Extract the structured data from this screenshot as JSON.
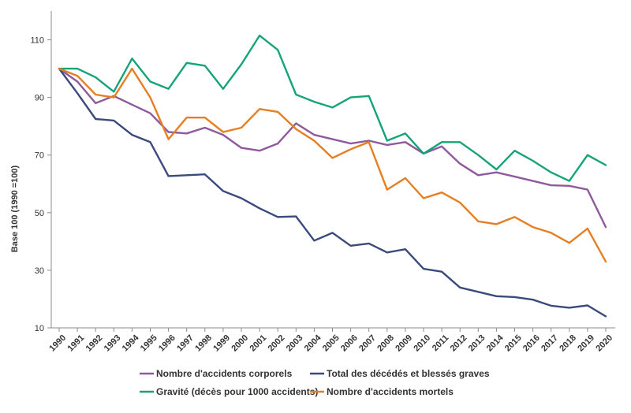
{
  "chart_data": {
    "type": "line",
    "ylabel": "Base 100 (1990 =100)",
    "ylim": [
      10,
      120
    ],
    "yticks": [
      10,
      30,
      50,
      70,
      90,
      110
    ],
    "grid": false,
    "legend_position": "bottom",
    "x": [
      1990,
      1991,
      1992,
      1993,
      1994,
      1995,
      1996,
      1997,
      1998,
      1999,
      2000,
      2001,
      2002,
      2003,
      2004,
      2005,
      2006,
      2007,
      2008,
      2009,
      2010,
      2011,
      2012,
      2013,
      2014,
      2015,
      2016,
      2017,
      2018,
      2019,
      2020
    ],
    "x_labels": [
      "1990",
      "1991",
      "1992",
      "1993",
      "1994",
      "1995",
      "1996",
      "1997",
      "1998",
      "1999",
      "2000",
      "2001",
      "2002",
      "2003",
      "2004",
      "2005",
      "2006",
      "2007",
      "2008",
      "2009",
      "2010",
      "2011",
      "2012",
      "2013",
      "2014",
      "2015",
      "2016",
      "2017",
      "2018",
      "2019",
      "2020"
    ],
    "series": [
      {
        "name": "Nombre d'accidents corporels",
        "color": "#8e5a9b",
        "values": [
          100,
          95.5,
          88,
          90.5,
          87.5,
          84.5,
          78,
          77.5,
          79.5,
          77,
          72.5,
          71.5,
          74,
          81,
          77,
          75.5,
          74,
          75,
          73.5,
          74.5,
          70.5,
          73,
          67,
          63,
          64,
          62.5,
          61,
          59.5,
          59.3,
          58,
          45
        ]
      },
      {
        "name": "Total des décédés et blessés graves",
        "color": "#3b4a7d",
        "values": [
          100,
          91.5,
          82.5,
          82,
          77,
          74.5,
          62.7,
          63,
          63.3,
          57.5,
          55,
          51.5,
          48.5,
          48.7,
          40.3,
          43,
          38.5,
          39.3,
          36.2,
          37.3,
          30.5,
          29.5,
          24,
          22.5,
          21,
          20.7,
          19.8,
          17.7,
          17,
          17.8,
          14
        ]
      },
      {
        "name": "Gravité (décès pour 1000 accidents)",
        "color": "#16a37a",
        "values": [
          100,
          100,
          97,
          92,
          103.5,
          95.5,
          93,
          102,
          101,
          93,
          101.5,
          111.5,
          106.5,
          91,
          88.5,
          86.5,
          90,
          90.5,
          75,
          77.5,
          70.5,
          74.5,
          74.5,
          70,
          65,
          71.5,
          68,
          64,
          61,
          70,
          66.5
        ]
      },
      {
        "name": "Nombre d'accidents mortels",
        "color": "#e67e22",
        "values": [
          100,
          97.5,
          91,
          90,
          100,
          90,
          75.5,
          83,
          83,
          78,
          79.5,
          86,
          85,
          79,
          75,
          69,
          72,
          74.5,
          58,
          62,
          55,
          57,
          53.5,
          47,
          46,
          48.5,
          45,
          43,
          39.5,
          44.5,
          33
        ]
      }
    ]
  }
}
